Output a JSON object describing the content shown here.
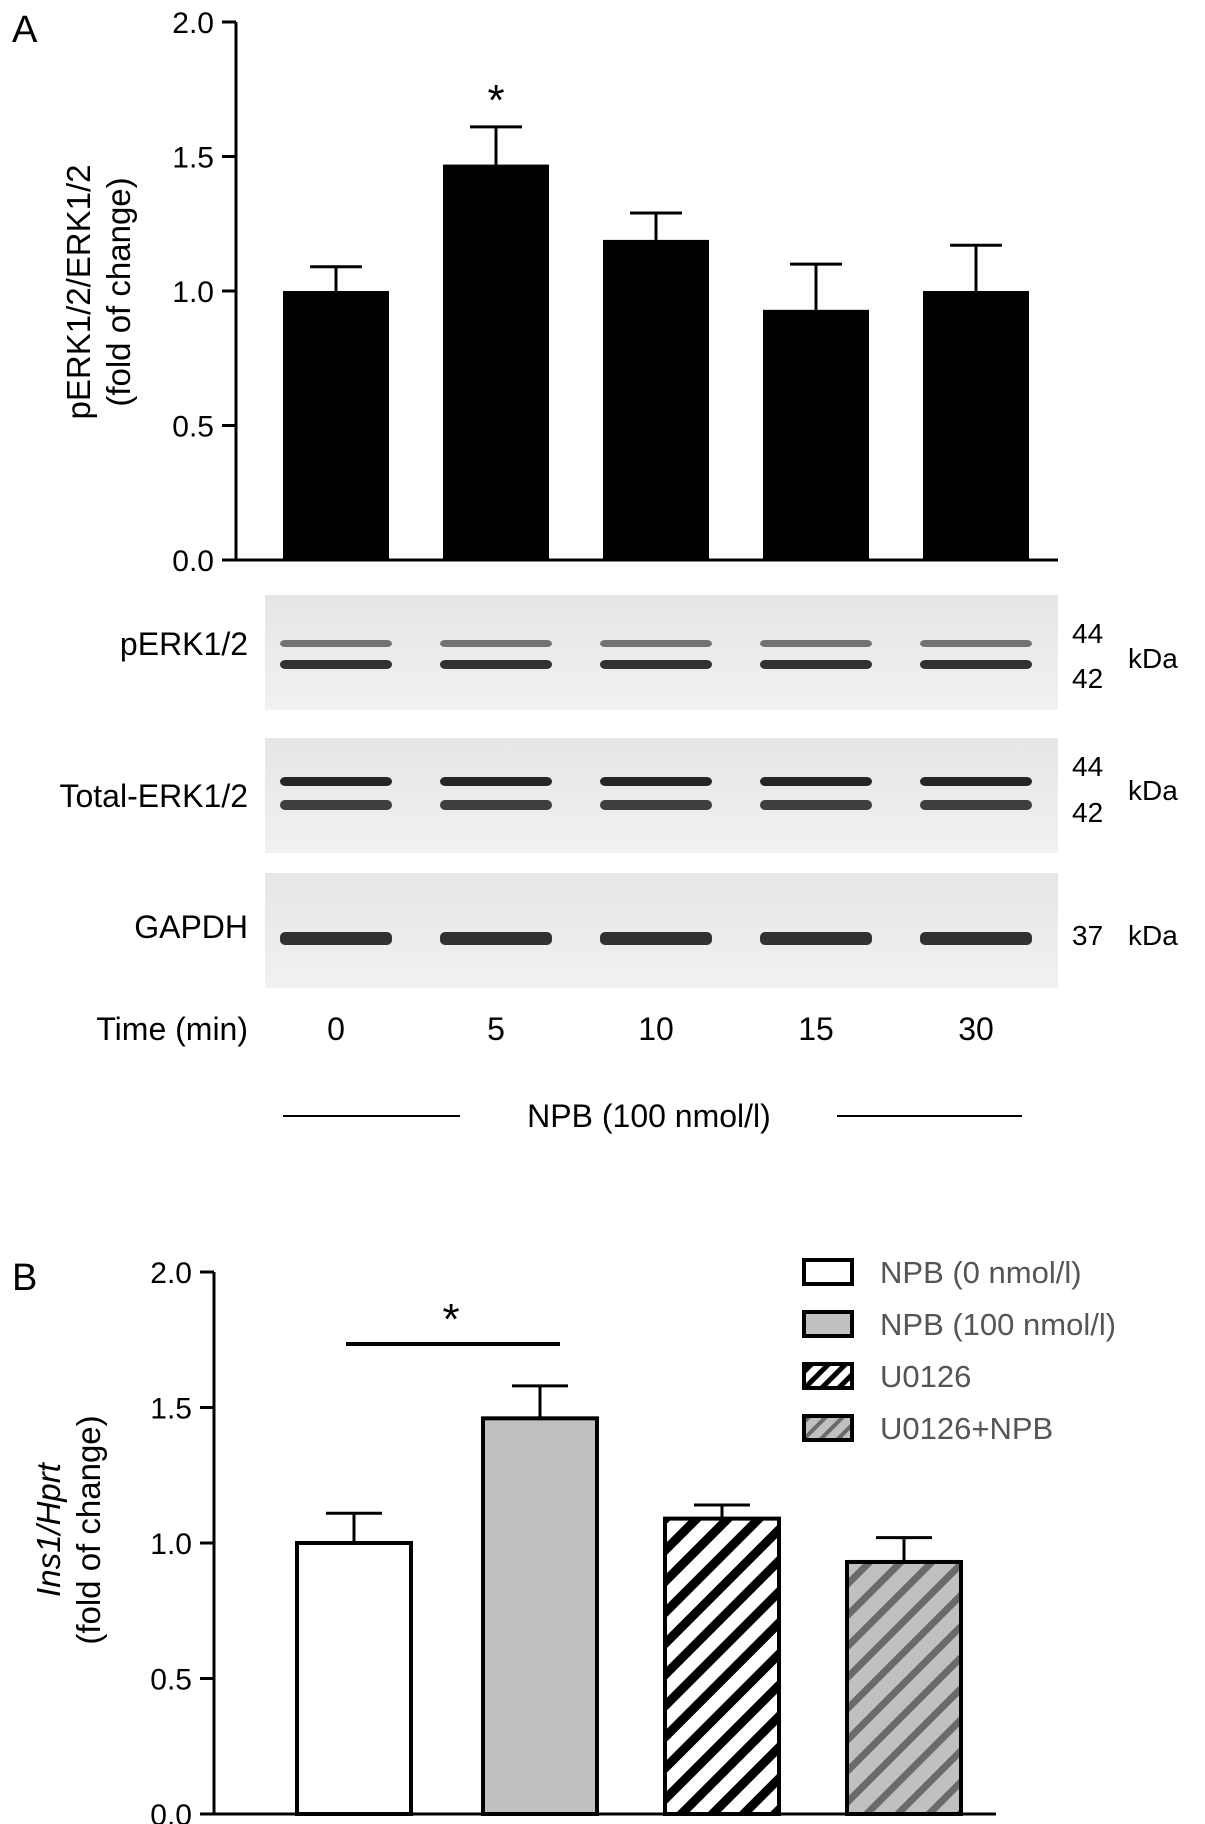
{
  "chart_data": [
    {
      "panel": "A",
      "type": "bar",
      "ylabel_line1": "pERK1/2/ERK1/2",
      "ylabel_line2": "(fold of change)",
      "ylim": [
        0,
        2.0
      ],
      "yticks": [
        "0.0",
        "0.5",
        "1.0",
        "1.5",
        "2.0"
      ],
      "categories": [
        "0",
        "5",
        "10",
        "15",
        "30"
      ],
      "values": [
        1.0,
        1.47,
        1.19,
        0.93,
        1.0
      ],
      "errors": [
        0.09,
        0.14,
        0.1,
        0.17,
        0.17
      ],
      "bar_color": "#000000",
      "significance": [
        {
          "category_index": 1,
          "mark": "*"
        }
      ],
      "blot": {
        "rows": [
          {
            "label": "pERK1/2",
            "markers": [
              "44",
              "42"
            ],
            "unit": "kDa"
          },
          {
            "label": "Total-ERK1/2",
            "markers": [
              "44",
              "42"
            ],
            "unit": "kDa"
          },
          {
            "label": "GAPDH",
            "markers": [
              "37"
            ],
            "unit": "kDa"
          }
        ],
        "time_label": "Time (min)",
        "treatment_label": "NPB (100 nmol/l)"
      }
    },
    {
      "panel": "B",
      "type": "bar",
      "ylabel_italic": "Ins1/Hprt",
      "ylabel_line2": "(fold of change)",
      "ylim": [
        0,
        2.0
      ],
      "yticks": [
        "0.0",
        "0.5",
        "1.0",
        "1.5",
        "2.0"
      ],
      "series": [
        {
          "name": "NPB (0 nmol/l)",
          "value": 1.0,
          "error": 0.11,
          "fill": "#ffffff",
          "hatch": false
        },
        {
          "name": "NPB (100 nmol/l)",
          "value": 1.46,
          "error": 0.12,
          "fill": "#c0c0c0",
          "hatch": false
        },
        {
          "name": "U0126",
          "value": 1.09,
          "error": 0.05,
          "fill": "#ffffff",
          "hatch": true
        },
        {
          "name": "U0126+NPB",
          "value": 0.93,
          "error": 0.09,
          "fill": "#c0c0c0",
          "hatch": true
        }
      ],
      "significance": [
        {
          "from": 0,
          "to": 1,
          "mark": "*"
        }
      ],
      "legend_position": "top-right"
    }
  ]
}
